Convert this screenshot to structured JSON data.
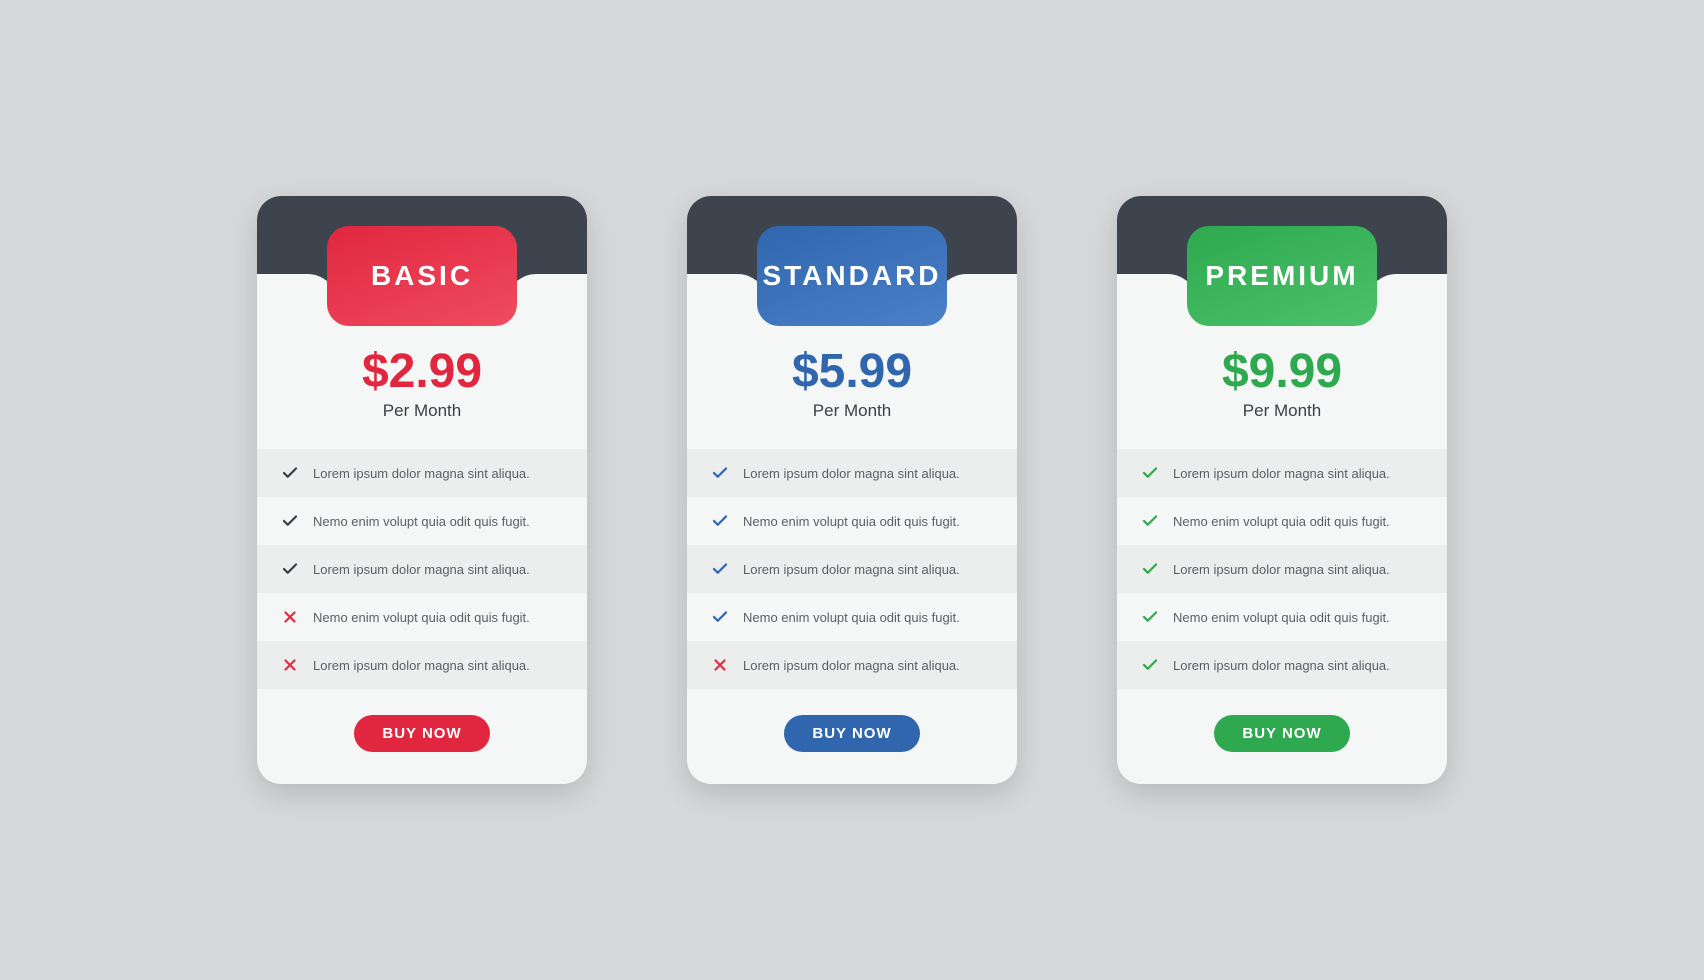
{
  "page": {
    "background_color": "#d7d8d9",
    "card_background": "#f5f6f6",
    "card_border_radius": 24,
    "header_dark_color": "#3e444e",
    "stripe_odd_color": "#eceded",
    "feature_text_color": "#5a5f66",
    "period_text_color": "#3a4046"
  },
  "icons": {
    "cross_color": "#de2f44",
    "neutral_check_color": "#3a3f46"
  },
  "plans": [
    {
      "id": "basic",
      "name": "BASIC",
      "accent_color": "#e0273f",
      "accent_gradient_end": "#ef4b5f",
      "price": "$2.99",
      "period": "Per Month",
      "cta_label": "BUY NOW",
      "check_color": "#3a3f46",
      "features": [
        {
          "included": true,
          "text": "Lorem ipsum dolor magna sint aliqua."
        },
        {
          "included": true,
          "text": "Nemo enim volupt quia odit quis fugit."
        },
        {
          "included": true,
          "text": "Lorem ipsum dolor magna sint aliqua."
        },
        {
          "included": false,
          "text": "Nemo enim volupt quia odit quis fugit."
        },
        {
          "included": false,
          "text": "Lorem ipsum dolor magna sint aliqua."
        }
      ]
    },
    {
      "id": "standard",
      "name": "STANDARD",
      "accent_color": "#2f66ae",
      "accent_gradient_end": "#4a80c7",
      "price": "$5.99",
      "period": "Per Month",
      "cta_label": "BUY NOW",
      "check_color": "#2f66ae",
      "features": [
        {
          "included": true,
          "text": "Lorem ipsum dolor magna sint aliqua."
        },
        {
          "included": true,
          "text": "Nemo enim volupt quia odit quis fugit."
        },
        {
          "included": true,
          "text": "Lorem ipsum dolor magna sint aliqua."
        },
        {
          "included": true,
          "text": "Nemo enim volupt quia odit quis fugit."
        },
        {
          "included": false,
          "text": "Lorem ipsum dolor magna sint aliqua."
        }
      ]
    },
    {
      "id": "premium",
      "name": "PREMIUM",
      "accent_color": "#2ea94f",
      "accent_gradient_end": "#4bc26a",
      "price": "$9.99",
      "period": "Per Month",
      "cta_label": "BUY NOW",
      "check_color": "#2ea94f",
      "features": [
        {
          "included": true,
          "text": "Lorem ipsum dolor magna sint aliqua."
        },
        {
          "included": true,
          "text": "Nemo enim volupt quia odit quis fugit."
        },
        {
          "included": true,
          "text": "Lorem ipsum dolor magna sint aliqua."
        },
        {
          "included": true,
          "text": "Nemo enim volupt quia odit quis fugit."
        },
        {
          "included": true,
          "text": "Lorem ipsum dolor magna sint aliqua."
        }
      ]
    }
  ]
}
